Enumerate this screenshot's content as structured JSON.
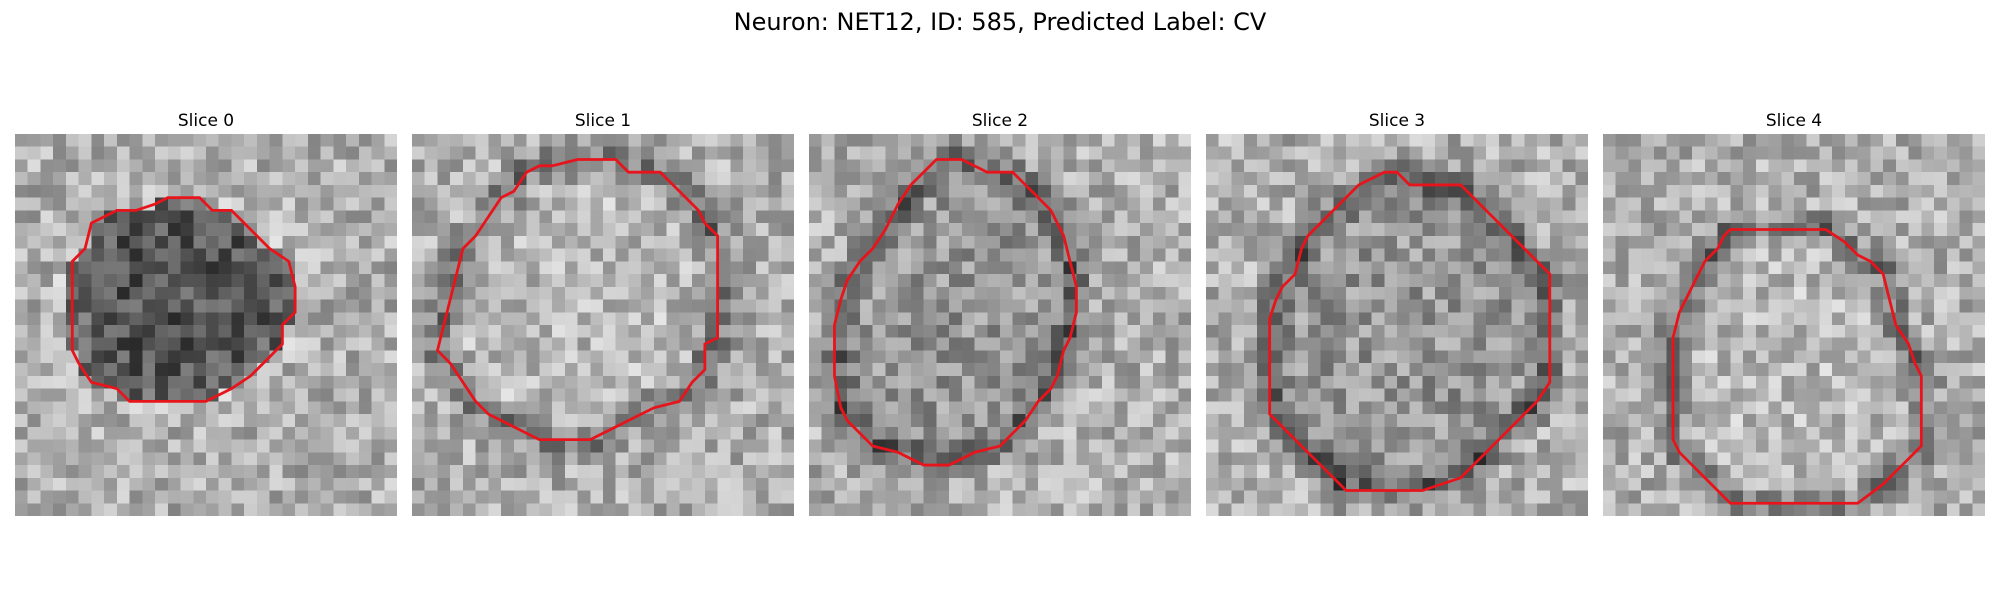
{
  "figure": {
    "title": "Neuron: NET12, ID: 585, Predicted Label: CV"
  },
  "panels": [
    {
      "title": "Slice 0",
      "seed": 11,
      "interior": "dark",
      "contour_label": "roi-contour"
    },
    {
      "title": "Slice 1",
      "seed": 23,
      "interior": "light",
      "contour_label": "roi-contour"
    },
    {
      "title": "Slice 2",
      "seed": 37,
      "interior": "mid",
      "contour_label": "roi-contour"
    },
    {
      "title": "Slice 3",
      "seed": 41,
      "interior": "mid",
      "contour_label": "roi-contour"
    },
    {
      "title": "Slice 4",
      "seed": 53,
      "interior": "light",
      "contour_label": "roi-contour"
    }
  ],
  "colors": {
    "contour": "#e8141c",
    "background": "#ffffff"
  }
}
